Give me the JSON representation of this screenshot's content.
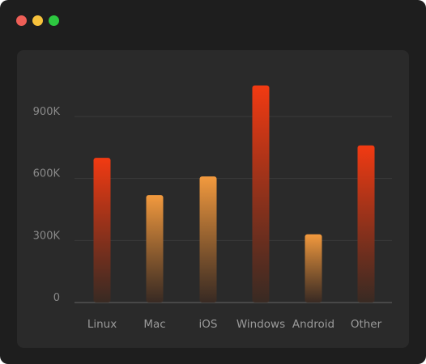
{
  "window": {
    "traffic_lights": [
      {
        "name": "close",
        "color": "#ee5f57"
      },
      {
        "name": "minimize",
        "color": "#f7c23c"
      },
      {
        "name": "maximize",
        "color": "#2dc840"
      }
    ]
  },
  "colors": {
    "bar_top_tall": "#f23a12",
    "bar_top_short": "#f39a3e",
    "bar_bottom": "#3a2a22",
    "grid": "#3a3a3a",
    "axis": "#666666"
  },
  "chart_data": {
    "type": "bar",
    "title": "",
    "xlabel": "",
    "ylabel": "",
    "categories": [
      "Linux",
      "Mac",
      "iOS",
      "Windows",
      "Android",
      "Other"
    ],
    "values": [
      700000,
      520000,
      610000,
      1050000,
      330000,
      760000
    ],
    "ylim": [
      0,
      1050000
    ],
    "yticks": [
      0,
      300000,
      600000,
      900000
    ],
    "ytick_labels": [
      "0",
      "300K",
      "600K",
      "900K"
    ],
    "grid": true,
    "legend": "none"
  }
}
